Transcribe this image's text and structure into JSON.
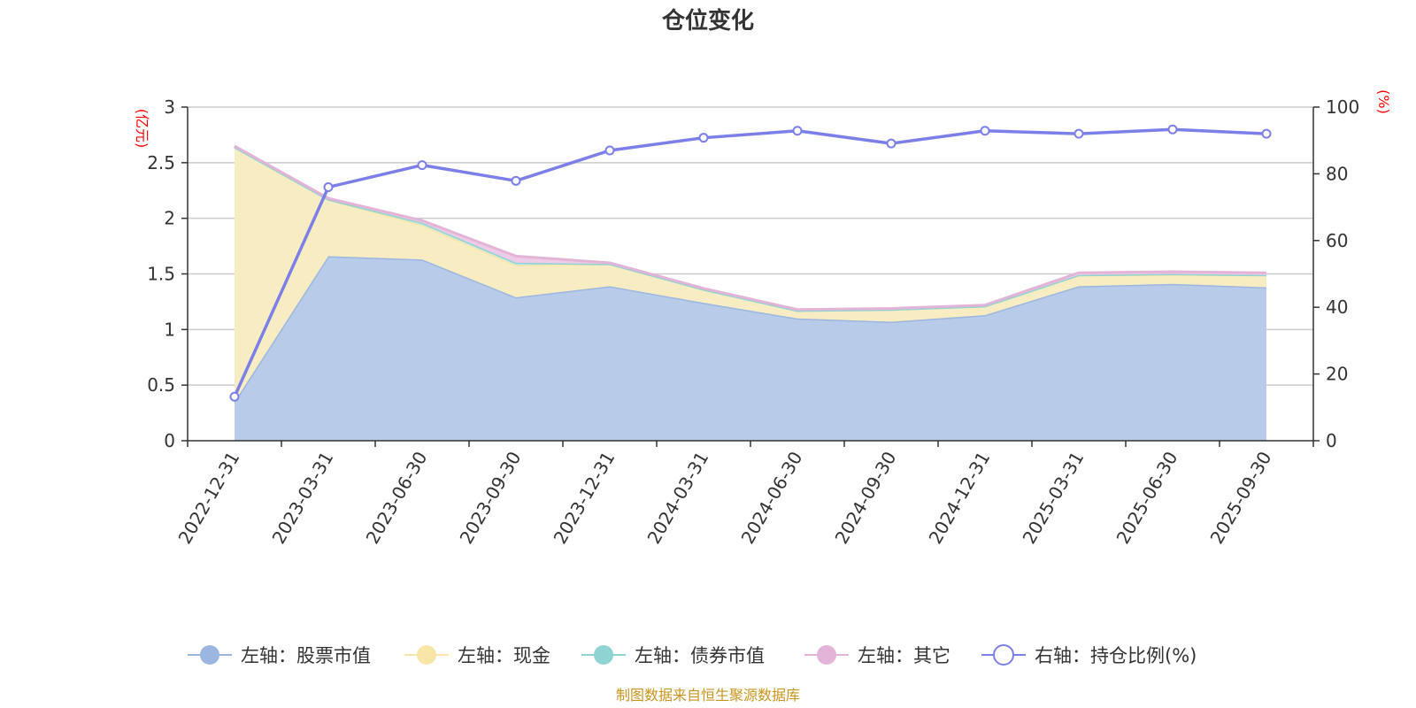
{
  "chart_data": {
    "type": "area",
    "title": "仓位变化",
    "left_axis_unit": "(亿元)",
    "right_axis_unit": "(%)",
    "categories": [
      "2022-12-31",
      "2023-03-31",
      "2023-06-30",
      "2023-09-30",
      "2023-12-31",
      "2024-03-31",
      "2024-06-30",
      "2024-09-30",
      "2024-12-31",
      "2025-03-31",
      "2025-06-30",
      "2025-09-30"
    ],
    "left_ylim": [
      0,
      3
    ],
    "left_yticks": [
      "0",
      "0.5",
      "1",
      "1.5",
      "2",
      "2.5",
      "3"
    ],
    "right_ylim": [
      0,
      100
    ],
    "right_yticks": [
      "0",
      "20",
      "40",
      "60",
      "80",
      "100"
    ],
    "grid": true,
    "stack_series": [
      {
        "name": "左轴：股票市值",
        "color": "#9bb6e0",
        "fill": "#b8cbe9",
        "values": [
          0.35,
          1.66,
          1.63,
          1.29,
          1.39,
          1.24,
          1.1,
          1.07,
          1.13,
          1.39,
          1.41,
          1.38
        ]
      },
      {
        "name": "左轴：现金",
        "color": "#f7e6a8",
        "fill": "#f8edc2",
        "values": [
          2.29,
          0.51,
          0.31,
          0.29,
          0.2,
          0.12,
          0.07,
          0.11,
          0.08,
          0.1,
          0.08,
          0.11
        ]
      },
      {
        "name": "左轴：债券市值",
        "color": "#8fd3d3",
        "fill": "#c5eaea",
        "values": [
          0.0,
          0.0,
          0.02,
          0.02,
          0.0,
          0.0,
          0.0,
          0.0,
          0.0,
          0.0,
          0.01,
          0.0
        ]
      },
      {
        "name": "左轴：其它",
        "color": "#e3b3d8",
        "fill": "#eecbe6",
        "values": [
          0.01,
          0.01,
          0.02,
          0.06,
          0.01,
          0.01,
          0.01,
          0.01,
          0.01,
          0.02,
          0.02,
          0.02
        ]
      }
    ],
    "line_series": {
      "name": "右轴：持仓比例(%)",
      "color": "#7b7fe8",
      "values": [
        13.2,
        76.0,
        82.6,
        77.9,
        87.0,
        90.8,
        92.9,
        89.1,
        92.9,
        92.0,
        93.3,
        92.0
      ]
    },
    "legend_position": "bottom",
    "source": "制图数据来自恒生聚源数据库"
  }
}
